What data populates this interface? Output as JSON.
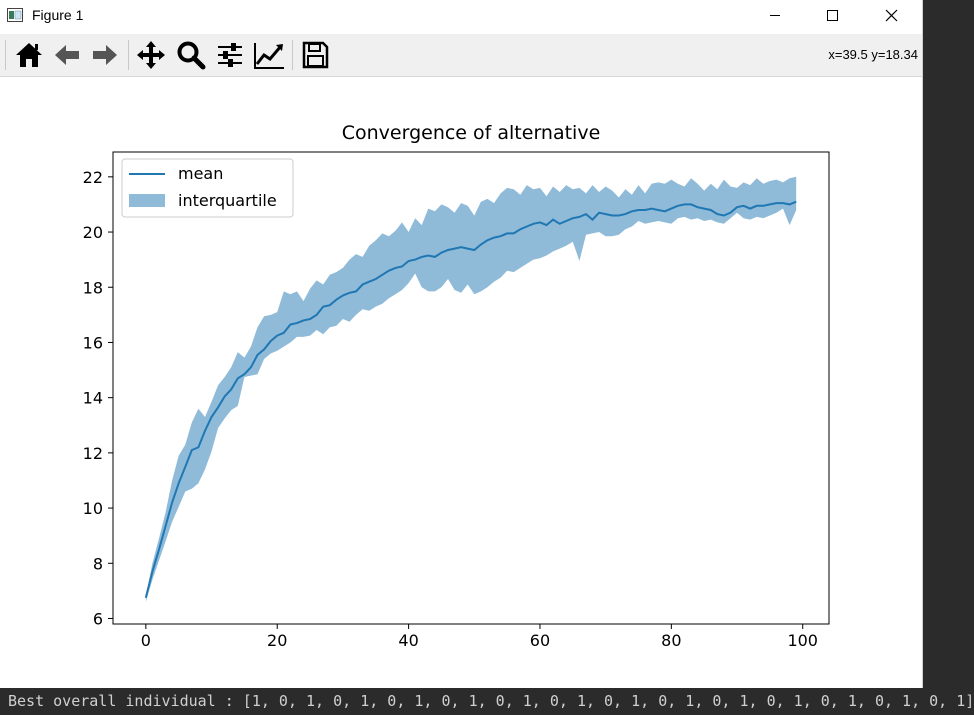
{
  "window": {
    "title": "Figure 1"
  },
  "toolbar": {
    "buttons": [
      {
        "name": "home-icon",
        "label": "Home"
      },
      {
        "name": "back-arrow-icon",
        "label": "Back"
      },
      {
        "name": "forward-arrow-icon",
        "label": "Forward"
      },
      {
        "name": "pan-icon",
        "label": "Pan"
      },
      {
        "name": "zoom-icon",
        "label": "Zoom"
      },
      {
        "name": "subplots-icon",
        "label": "Configure subplots"
      },
      {
        "name": "edit-axis-icon",
        "label": "Edit axis"
      },
      {
        "name": "save-icon",
        "label": "Save"
      }
    ],
    "coords": "x=39.5 y=18.34"
  },
  "chart_data": {
    "type": "line",
    "title": "Convergence of alternative",
    "xlabel": "",
    "ylabel": "",
    "xlim": [
      -5,
      104
    ],
    "ylim": [
      5.8,
      22.9
    ],
    "xticks": [
      0,
      20,
      40,
      60,
      80,
      100
    ],
    "yticks": [
      6,
      8,
      10,
      12,
      14,
      16,
      18,
      20,
      22
    ],
    "grid": false,
    "legend": {
      "placement": "upper-left",
      "entries": [
        "mean",
        "interquartile"
      ]
    },
    "colors": {
      "mean": "#1f77b4",
      "band": "#1f77b4"
    },
    "x": [
      0,
      1,
      2,
      3,
      4,
      5,
      6,
      7,
      8,
      9,
      10,
      11,
      12,
      13,
      14,
      15,
      16,
      17,
      18,
      19,
      20,
      21,
      22,
      23,
      24,
      25,
      26,
      27,
      28,
      29,
      30,
      31,
      32,
      33,
      34,
      35,
      36,
      37,
      38,
      39,
      40,
      41,
      42,
      43,
      44,
      45,
      46,
      47,
      48,
      49,
      50,
      51,
      52,
      53,
      54,
      55,
      56,
      57,
      58,
      59,
      60,
      61,
      62,
      63,
      64,
      65,
      66,
      67,
      68,
      69,
      70,
      71,
      72,
      73,
      74,
      75,
      76,
      77,
      78,
      79,
      80,
      81,
      82,
      83,
      84,
      85,
      86,
      87,
      88,
      89,
      90,
      91,
      92,
      93,
      94,
      95,
      96,
      97,
      98,
      99
    ],
    "series": [
      {
        "name": "mean",
        "values": [
          6.75,
          7.7,
          8.5,
          9.35,
          10.2,
          10.9,
          11.5,
          12.1,
          12.2,
          12.8,
          13.3,
          13.65,
          14.05,
          14.3,
          14.7,
          14.85,
          15.1,
          15.55,
          15.75,
          16.05,
          16.25,
          16.35,
          16.65,
          16.7,
          16.8,
          16.85,
          17.0,
          17.3,
          17.35,
          17.55,
          17.7,
          17.8,
          17.85,
          18.1,
          18.2,
          18.3,
          18.45,
          18.6,
          18.7,
          18.75,
          18.95,
          19.0,
          19.1,
          19.15,
          19.1,
          19.25,
          19.35,
          19.4,
          19.45,
          19.4,
          19.35,
          19.55,
          19.7,
          19.8,
          19.85,
          19.95,
          19.95,
          20.1,
          20.2,
          20.3,
          20.35,
          20.25,
          20.45,
          20.3,
          20.4,
          20.5,
          20.55,
          20.65,
          20.45,
          20.7,
          20.65,
          20.6,
          20.6,
          20.65,
          20.75,
          20.8,
          20.8,
          20.85,
          20.8,
          20.75,
          20.85,
          20.95,
          21.0,
          21.0,
          20.9,
          20.85,
          20.8,
          20.65,
          20.6,
          20.7,
          20.9,
          20.95,
          20.85,
          20.95,
          20.95,
          21.0,
          21.05,
          21.05,
          21.0,
          21.1
        ]
      },
      {
        "name": "interquartile",
        "lower": [
          6.6,
          7.4,
          8.1,
          8.8,
          9.5,
          10.05,
          10.6,
          10.7,
          10.9,
          11.4,
          12.05,
          12.9,
          13.25,
          13.55,
          13.7,
          14.75,
          14.8,
          14.85,
          15.4,
          15.6,
          15.7,
          15.85,
          16.0,
          16.2,
          16.2,
          16.25,
          16.45,
          16.3,
          16.55,
          16.6,
          16.85,
          16.75,
          17.0,
          17.2,
          17.15,
          17.3,
          17.4,
          17.6,
          17.75,
          17.9,
          18.15,
          18.5,
          18.0,
          17.85,
          17.85,
          18.0,
          18.3,
          17.9,
          17.8,
          18.1,
          17.75,
          17.85,
          18.0,
          18.2,
          18.35,
          18.6,
          18.55,
          18.7,
          18.85,
          19.0,
          19.05,
          19.15,
          19.3,
          19.4,
          19.5,
          19.65,
          18.95,
          19.9,
          19.95,
          20.0,
          19.85,
          19.85,
          19.9,
          20.1,
          20.2,
          20.4,
          20.3,
          20.35,
          20.4,
          20.35,
          20.3,
          20.5,
          20.55,
          20.45,
          20.5,
          20.4,
          20.45,
          20.35,
          20.3,
          20.5,
          20.7,
          20.5,
          20.45,
          20.55,
          20.5,
          20.6,
          20.7,
          20.85,
          20.25,
          20.8
        ],
        "upper": [
          6.8,
          8.0,
          8.9,
          9.85,
          11.0,
          11.9,
          12.3,
          13.1,
          13.6,
          13.3,
          13.85,
          14.45,
          14.75,
          15.1,
          15.65,
          15.45,
          15.85,
          16.55,
          16.95,
          17.0,
          17.1,
          17.85,
          17.75,
          17.85,
          17.5,
          17.95,
          18.25,
          18.1,
          18.45,
          18.55,
          18.7,
          19.0,
          19.2,
          19.1,
          19.5,
          19.7,
          19.95,
          19.85,
          20.05,
          20.35,
          20.0,
          20.5,
          20.25,
          20.85,
          20.75,
          21.0,
          20.9,
          20.7,
          21.05,
          20.95,
          20.6,
          21.1,
          21.2,
          21.05,
          21.4,
          21.6,
          21.55,
          21.35,
          21.7,
          21.55,
          21.6,
          21.3,
          21.65,
          21.45,
          21.7,
          21.55,
          21.6,
          21.4,
          21.7,
          21.45,
          21.65,
          21.5,
          21.25,
          21.55,
          21.35,
          21.7,
          21.4,
          21.75,
          21.8,
          21.75,
          21.9,
          21.75,
          21.65,
          21.95,
          21.75,
          21.5,
          21.75,
          21.55,
          21.9,
          21.65,
          21.6,
          21.8,
          21.7,
          21.95,
          21.75,
          21.85,
          21.9,
          21.8,
          21.95,
          22.0
        ]
      }
    ]
  },
  "terminal": {
    "text": "Best overall individual :  [1, 0, 1, 0, 1, 0, 1, 0, 1, 0, 1, 0, 1, 0, 1, 0, 1, 0, 1, 0, 1, 0, 1, 0, 1, 0, 1]"
  }
}
